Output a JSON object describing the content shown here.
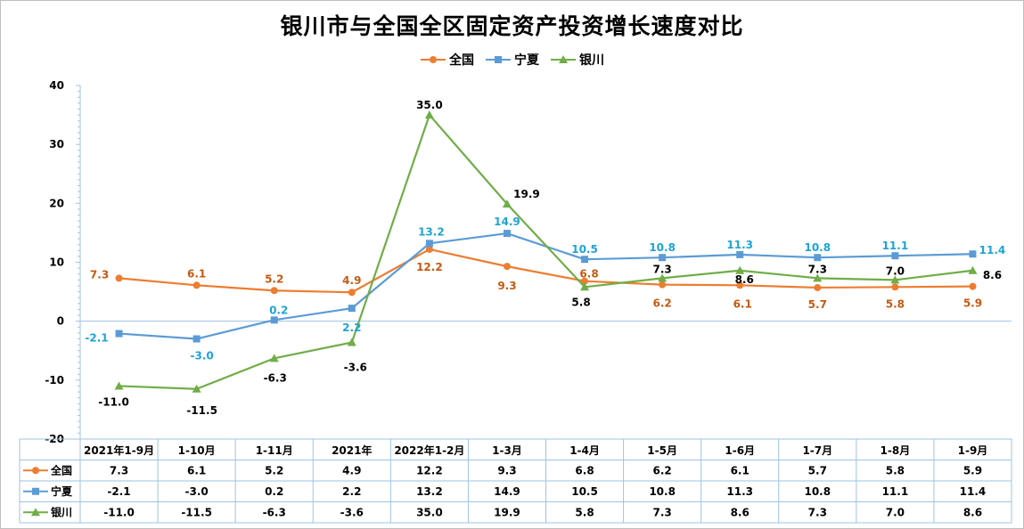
{
  "chart_data": {
    "type": "line",
    "title": "银川市与全国全区固定资产投资增长速度对比",
    "categories": [
      "2021年1-9月",
      "1-10月",
      "1-11月",
      "2021年",
      "2022年1-2月",
      "1-3月",
      "1-4月",
      "1-5月",
      "1-6月",
      "1-7月",
      "1-8月",
      "1-9月"
    ],
    "ylim": [
      -20,
      40
    ],
    "yticks": [
      "40",
      "30",
      "20",
      "10",
      "0",
      "-10",
      "-20"
    ],
    "grid": false,
    "legend_position": "top",
    "data_table": true,
    "series": [
      {
        "name": "全国",
        "color": "#ED7D31",
        "marker": "circle",
        "label_color": "#C55A11",
        "values": [
          7.3,
          6.1,
          5.2,
          4.9,
          12.2,
          9.3,
          6.8,
          6.2,
          6.1,
          5.7,
          5.8,
          5.9
        ],
        "labels": [
          "7.3",
          "6.1",
          "5.2",
          "4.9",
          "12.2",
          "9.3",
          "6.8",
          "6.2",
          "6.1",
          "5.7",
          "5.8",
          "5.9"
        ]
      },
      {
        "name": "宁夏",
        "color": "#5B9BD5",
        "marker": "square",
        "label_color": "#1FA3D6",
        "values": [
          -2.1,
          -3.0,
          0.2,
          2.2,
          13.2,
          14.9,
          10.5,
          10.8,
          11.3,
          10.8,
          11.1,
          11.4
        ],
        "labels": [
          "-2.1",
          "-3.0",
          "0.2",
          "2.2",
          "13.2",
          "14.9",
          "10.5",
          "10.8",
          "11.3",
          "10.8",
          "11.1",
          "11.4"
        ]
      },
      {
        "name": "银川",
        "color": "#70AD47",
        "marker": "triangle",
        "label_color": "#000000",
        "values": [
          -11.0,
          -11.5,
          -6.3,
          -3.6,
          35.0,
          19.9,
          5.8,
          7.3,
          8.6,
          7.3,
          7.0,
          8.6
        ],
        "labels": [
          "-11.0",
          "-11.5",
          "-6.3",
          "-3.6",
          "35.0",
          "19.9",
          "5.8",
          "7.3",
          "8.6",
          "7.3",
          "7.0",
          "8.6"
        ]
      }
    ]
  }
}
